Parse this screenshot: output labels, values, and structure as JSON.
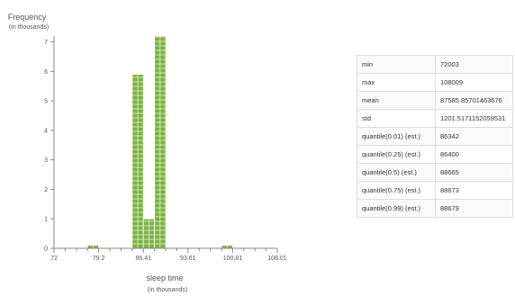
{
  "chart_data": {
    "type": "bar",
    "title": "",
    "ylabel": "Frequency",
    "ylabel_unit": "(in thousands)",
    "xlabel": "sleep time",
    "xlabel_unit": "(in thousands)",
    "xlim": [
      72,
      108.01
    ],
    "ylim": [
      0,
      7.2
    ],
    "x_ticks": [
      "72",
      "79.2",
      "86.41",
      "93.61",
      "100.81",
      "108.01"
    ],
    "y_ticks": [
      "0",
      "1",
      "2",
      "3",
      "4",
      "5",
      "6",
      "7"
    ],
    "bins": [
      {
        "x0": 77.4,
        "x1": 79.2,
        "value": 0.1
      },
      {
        "x0": 84.61,
        "x1": 86.41,
        "value": 5.9
      },
      {
        "x0": 86.41,
        "x1": 88.21,
        "value": 1.0
      },
      {
        "x0": 88.21,
        "x1": 90.01,
        "value": 7.2
      },
      {
        "x0": 99.01,
        "x1": 100.81,
        "value": 0.1
      }
    ],
    "bar_color": "#7cb342",
    "grid": false,
    "legend": "none"
  },
  "stats": [
    {
      "key": "min",
      "value": "72003"
    },
    {
      "key": "max",
      "value": "108009"
    },
    {
      "key": "mean",
      "value": "87585.85701463676"
    },
    {
      "key": "std",
      "value": "1201.5171152059531"
    },
    {
      "key": "quantile(0.01) (est.)",
      "value": "86342"
    },
    {
      "key": "quantile(0.25) (est.)",
      "value": "86400"
    },
    {
      "key": "quantile(0.5) (est.)",
      "value": "88665"
    },
    {
      "key": "quantile(0.75) (est.)",
      "value": "88673"
    },
    {
      "key": "quantile(0.99) (est.)",
      "value": "88679"
    }
  ]
}
